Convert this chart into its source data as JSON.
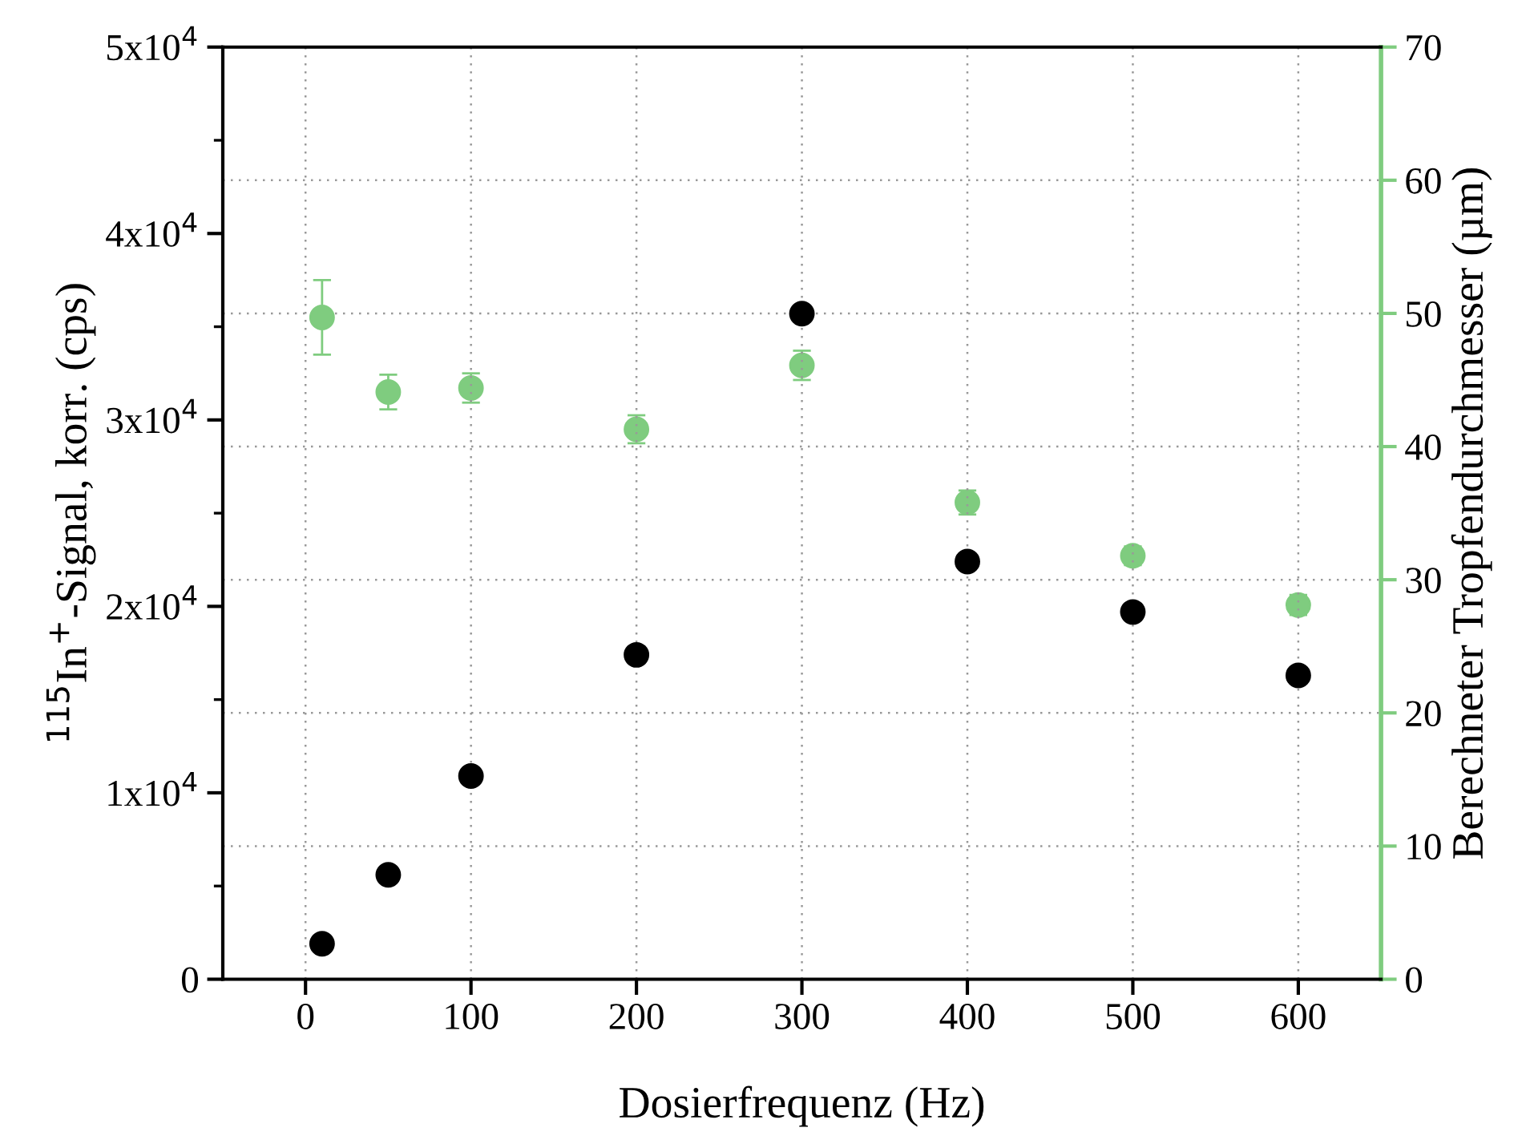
{
  "chart_data": {
    "type": "scatter",
    "xlabel": "Dosierfrequenz (Hz)",
    "ylabel": "$^{115}$In$^{+}$-Signal, korr. (cps)",
    "y2label": "Berechneter Tropfendurchmesser (µm)",
    "xlim": [
      -50,
      650
    ],
    "xticks": [
      0,
      100,
      200,
      300,
      400,
      500,
      600
    ],
    "ylim": [
      0,
      50000
    ],
    "yticks": [
      {
        "value": 0,
        "label": "0"
      },
      {
        "value": 10000,
        "label": "1x10$^{4}$"
      },
      {
        "value": 20000,
        "label": "2x10$^{4}$"
      },
      {
        "value": 30000,
        "label": "3x10$^{4}$"
      },
      {
        "value": 40000,
        "label": "4x10$^{4}$"
      },
      {
        "value": 50000,
        "label": "5x10$^{4}$"
      }
    ],
    "y2lim": [
      0,
      70
    ],
    "y2ticks": [
      0,
      10,
      20,
      30,
      40,
      50,
      60,
      70
    ],
    "grid": true,
    "marker": "circle",
    "series": [
      {
        "color": "#000000",
        "x": [
          10,
          50,
          100,
          200,
          300,
          400,
          500,
          600
        ],
        "values": [
          1900,
          5600,
          10900,
          17400,
          35700,
          22400,
          19700,
          16300
        ]
      },
      {
        "color": "#7fcc7f",
        "axis": "y2",
        "x": [
          10,
          50,
          100,
          200,
          300,
          400,
          500,
          600
        ],
        "values": [
          49.7,
          44.1,
          44.4,
          41.3,
          46.1,
          35.8,
          31.8,
          28.1
        ],
        "errors": [
          2.8,
          1.3,
          1.1,
          1.05,
          1.1,
          0.9,
          0.7,
          0.75
        ]
      }
    ]
  }
}
